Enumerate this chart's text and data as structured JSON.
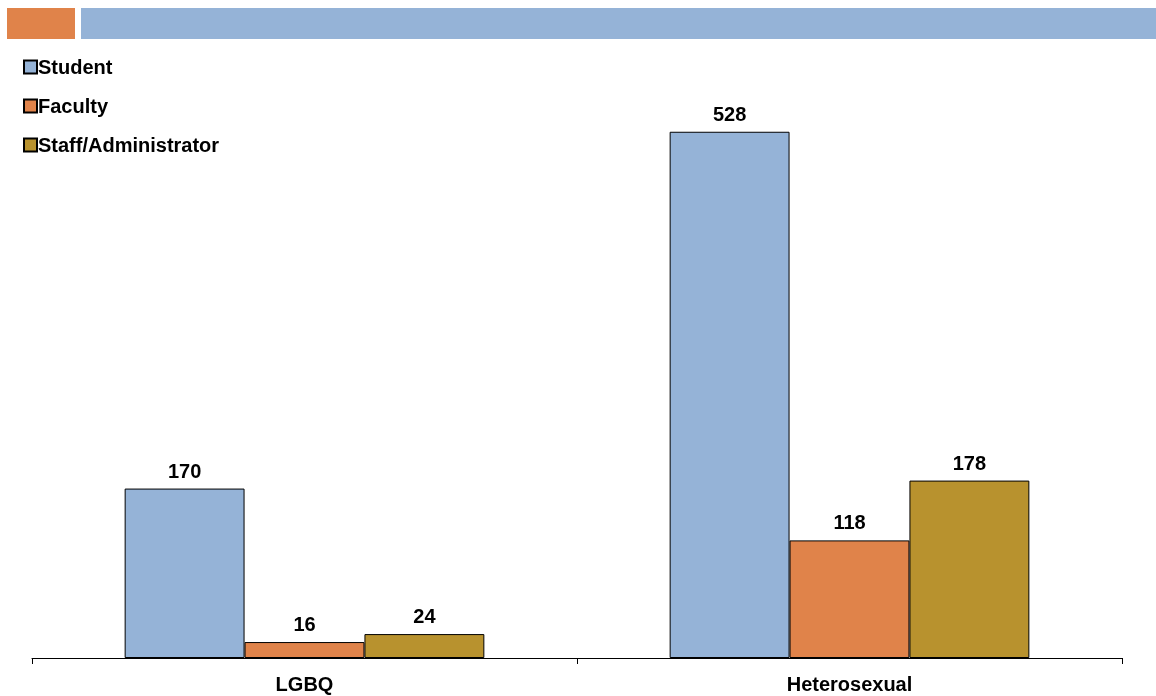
{
  "chart_data": {
    "type": "bar",
    "categories": [
      "LGBQ",
      "Heterosexual"
    ],
    "series": [
      {
        "name": "Student",
        "color": "#95b3d7",
        "values": [
          170,
          528
        ]
      },
      {
        "name": "Faculty",
        "color": "#e0834a",
        "values": [
          16,
          118
        ]
      },
      {
        "name": "Staff/Administrator",
        "color": "#b8922e",
        "values": [
          24,
          178
        ]
      }
    ],
    "data_labels": true,
    "legend": "top left",
    "grid": false
  }
}
